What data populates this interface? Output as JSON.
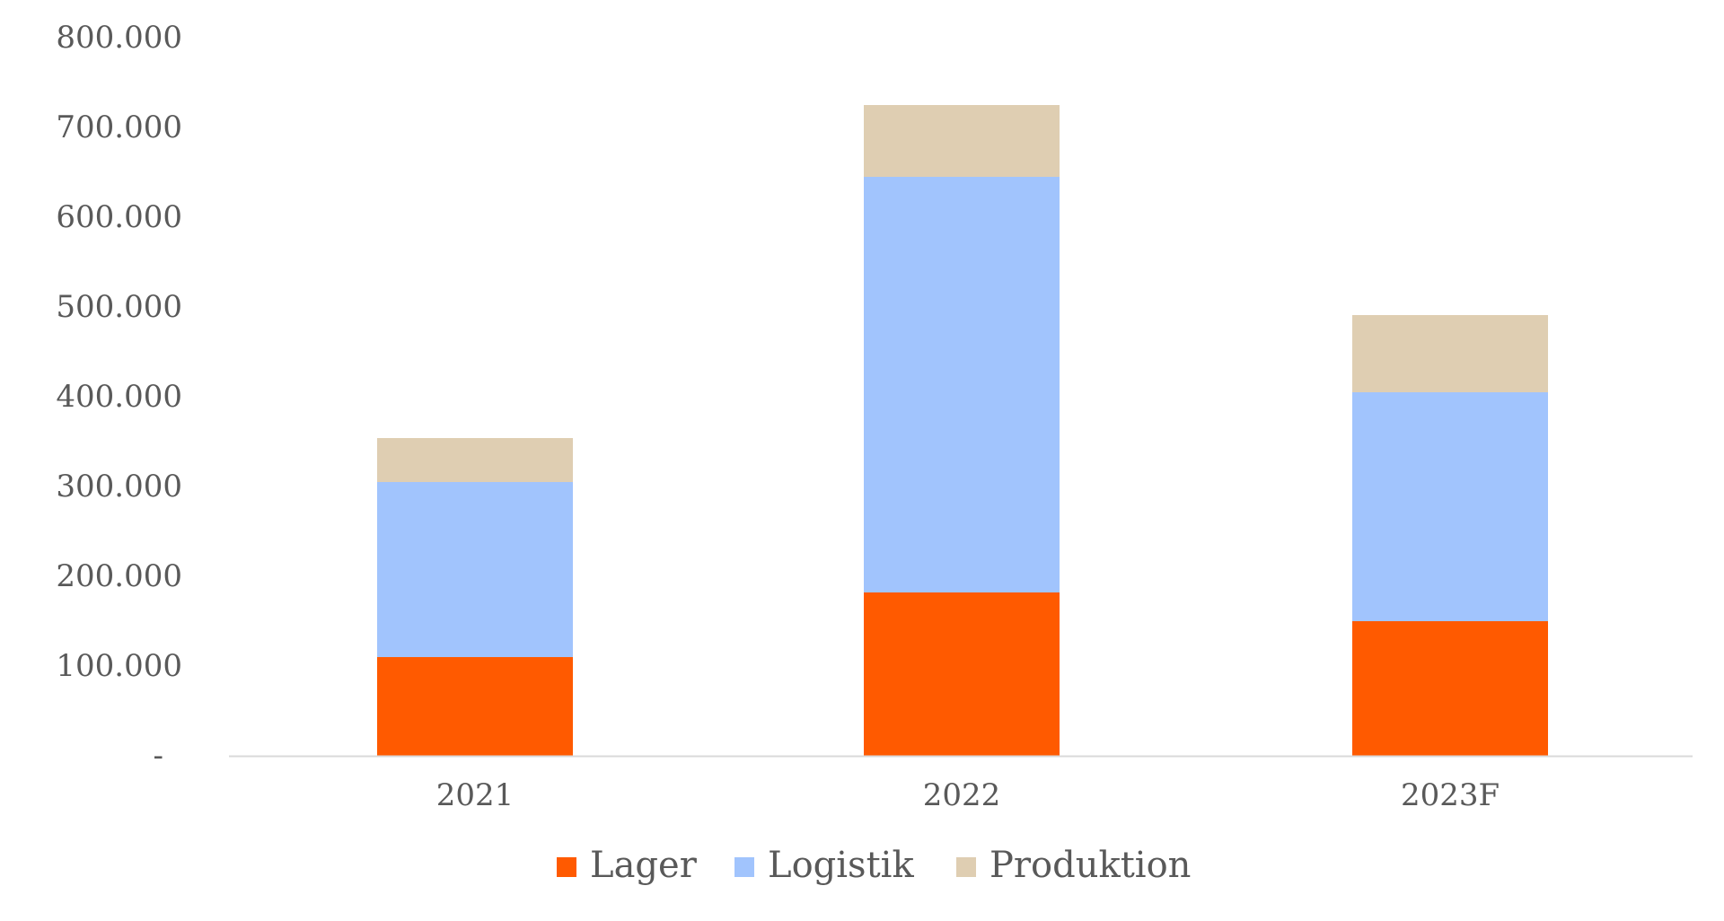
{
  "chart_data": {
    "type": "bar",
    "stacked": true,
    "categories": [
      "2021",
      "2022",
      "2023F"
    ],
    "series": [
      {
        "name": "Lager",
        "color": "#FF5A00",
        "values": [
          110000,
          182000,
          150000
        ]
      },
      {
        "name": "Logistik",
        "color": "#A1C4FD",
        "values": [
          195000,
          463000,
          255000
        ]
      },
      {
        "name": "Produktion",
        "color": "#DFCEB2",
        "values": [
          49000,
          80000,
          86000
        ]
      }
    ],
    "y_ticks": [
      {
        "value": 0,
        "label": "-"
      },
      {
        "value": 100000,
        "label": "100.000"
      },
      {
        "value": 200000,
        "label": "200.000"
      },
      {
        "value": 300000,
        "label": "300.000"
      },
      {
        "value": 400000,
        "label": "400.000"
      },
      {
        "value": 500000,
        "label": "500.000"
      },
      {
        "value": 600000,
        "label": "600.000"
      },
      {
        "value": 700000,
        "label": "700.000"
      },
      {
        "value": 800000,
        "label": "800.000"
      }
    ],
    "ylim": [
      0,
      800000
    ],
    "title": "",
    "xlabel": "",
    "ylabel": "",
    "grid": false,
    "legend_position": "bottom",
    "axis_color": "#D9D9D9"
  }
}
